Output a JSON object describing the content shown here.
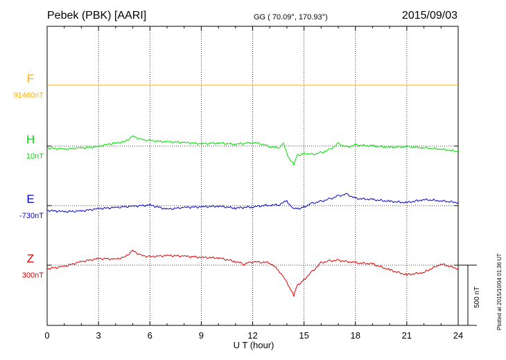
{
  "header": {
    "station": "Pebek (PBK)  [AARI]",
    "coords": "GG ( 70.09°, 170.93°)",
    "date": "2015/09/03"
  },
  "footer_note": "Plotted at 2015/10/04 01:36 UT",
  "scale_label": "500 nT",
  "colors": {
    "F": "#FFB000",
    "H": "#00DD00",
    "E": "#0000CC",
    "Z": "#DD0000",
    "grid": "#000000"
  },
  "chart_data": {
    "type": "line",
    "xlabel": "U T (hour)",
    "xlim": [
      0,
      24
    ],
    "xticks": [
      "0",
      "3",
      "6",
      "9",
      "12",
      "15",
      "18",
      "21",
      "24"
    ],
    "scale_bar_nT": 500,
    "series": [
      {
        "name": "F",
        "baseline_label": "91460nT",
        "x": [
          0,
          2,
          4,
          6,
          8,
          10,
          12,
          14,
          16,
          18,
          20,
          22,
          24
        ],
        "values": [
          0,
          0,
          0,
          0,
          0,
          0,
          0,
          0,
          0,
          0,
          0,
          0,
          0
        ]
      },
      {
        "name": "H",
        "baseline_label": "10nT",
        "x": [
          0,
          1,
          2,
          3,
          3.5,
          4,
          4.5,
          5,
          5.5,
          6,
          7,
          8,
          9,
          10,
          11,
          12,
          12.5,
          13,
          13.5,
          13.8,
          14,
          14.2,
          14.4,
          14.6,
          15,
          15.5,
          16,
          16.5,
          17,
          17.5,
          18,
          19,
          20,
          21,
          22,
          22.5,
          23,
          23.5,
          24
        ],
        "values": [
          -15,
          -25,
          -15,
          -5,
          15,
          25,
          35,
          80,
          55,
          45,
          35,
          30,
          20,
          25,
          15,
          30,
          20,
          -5,
          -15,
          20,
          -60,
          -120,
          -150,
          -80,
          -60,
          -70,
          -55,
          -30,
          20,
          -10,
          10,
          0,
          -10,
          -5,
          -15,
          -20,
          -25,
          -35,
          -45
        ]
      },
      {
        "name": "E",
        "baseline_label": "-730nT",
        "x": [
          0,
          1,
          2,
          3,
          4,
          5,
          6,
          7,
          8,
          9,
          10,
          11,
          12,
          13,
          13.5,
          14,
          14.3,
          14.6,
          15,
          15.5,
          16,
          16.5,
          17,
          17.5,
          18,
          19,
          20,
          21,
          22,
          23,
          24
        ],
        "values": [
          -40,
          -50,
          -45,
          -25,
          -15,
          -5,
          5,
          -30,
          -15,
          -10,
          -5,
          -20,
          -10,
          5,
          5,
          40,
          -20,
          -30,
          -10,
          20,
          35,
          55,
          80,
          95,
          60,
          50,
          35,
          25,
          50,
          40,
          25
        ]
      },
      {
        "name": "Z",
        "baseline_label": "300nT",
        "x": [
          0,
          1,
          2,
          3,
          4,
          4.5,
          5,
          5.5,
          6,
          7,
          8,
          9,
          10,
          11,
          11.5,
          12,
          12.5,
          13,
          13.5,
          13.8,
          14,
          14.2,
          14.4,
          14.6,
          15,
          15.5,
          16,
          16.5,
          17,
          18,
          19,
          20,
          21,
          22,
          23,
          24
        ],
        "values": [
          -30,
          -10,
          30,
          55,
          50,
          65,
          120,
          80,
          70,
          80,
          75,
          65,
          60,
          30,
          10,
          30,
          25,
          20,
          -40,
          -100,
          -140,
          -200,
          -250,
          -170,
          -120,
          -50,
          20,
          35,
          40,
          20,
          10,
          -40,
          -80,
          -60,
          10,
          -30
        ]
      }
    ]
  }
}
